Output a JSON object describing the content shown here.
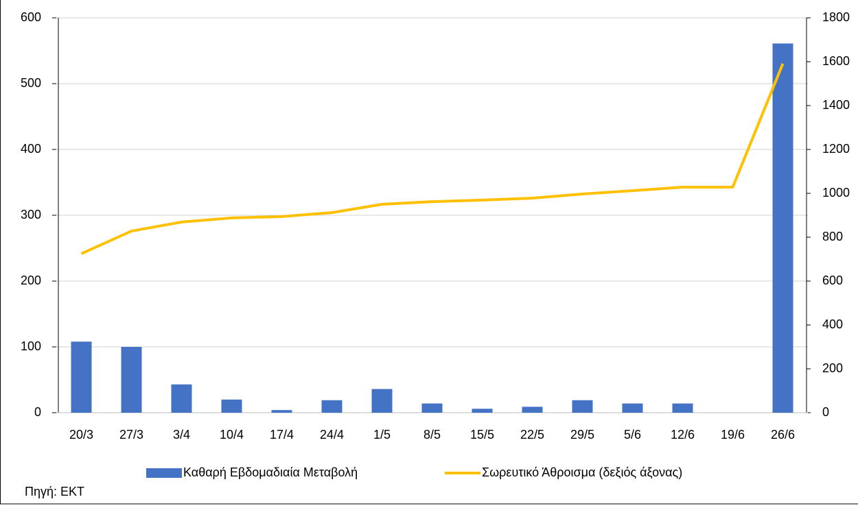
{
  "chart_data": {
    "type": "bar_line",
    "categories": [
      "20/3",
      "27/3",
      "3/4",
      "10/4",
      "17/4",
      "24/4",
      "1/5",
      "8/5",
      "15/5",
      "22/5",
      "29/5",
      "5/6",
      "12/6",
      "19/6",
      "26/6"
    ],
    "series": [
      {
        "name": "Καθαρή Εβδομαδιαία Μεταβολή",
        "type": "bar",
        "color": "#4472c4",
        "axis": "y",
        "values": [
          108,
          100,
          43,
          20,
          4,
          19,
          36,
          14,
          6,
          9,
          19,
          14,
          14,
          0,
          561
        ]
      },
      {
        "name": "Σωρευτικό Άθροισμα (δεξιός άξονας)",
        "type": "line",
        "color": "#ffc000",
        "axis": "y2",
        "values": [
          725,
          828,
          869,
          888,
          894,
          912,
          950,
          962,
          969,
          978,
          997,
          1012,
          1028,
          1028,
          1591
        ]
      }
    ],
    "ylim": [
      0,
      600
    ],
    "yticks": [
      0,
      100,
      200,
      300,
      400,
      500,
      600
    ],
    "y2lim": [
      0,
      1800
    ],
    "y2ticks": [
      0,
      200,
      400,
      600,
      800,
      1000,
      1200,
      1400,
      1600,
      1800
    ],
    "grid": true,
    "legend": "bottom",
    "source": "Πηγή: ΕΚΤ"
  }
}
